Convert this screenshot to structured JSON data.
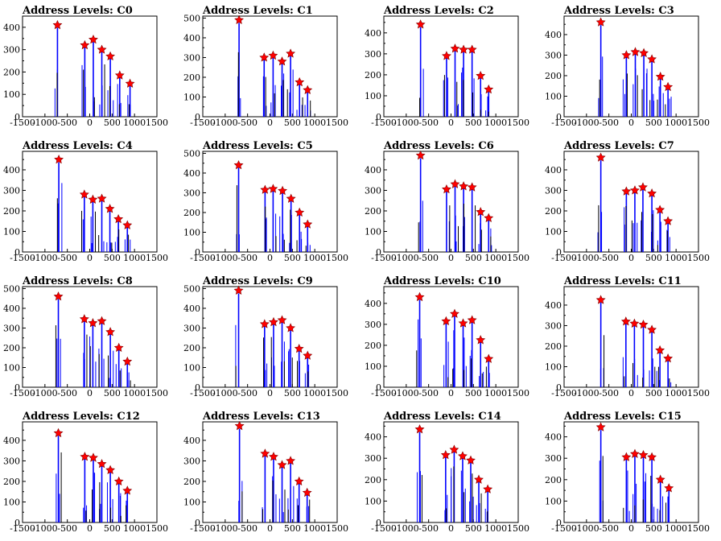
{
  "colors": {
    "hist": "#0000ff",
    "peak_fill": "#ff0000",
    "peak_stroke": "#800000",
    "axis": "#000000"
  },
  "xaxis": {
    "range": [
      -1500,
      1500
    ],
    "ticks": [
      -1500,
      -1000,
      -500,
      0,
      500,
      1000,
      1500
    ]
  },
  "chart_data": [
    {
      "type": "bar",
      "title": "Address Levels: C0",
      "ylim": [
        0,
        450
      ],
      "yticks": [
        0,
        100,
        200,
        300,
        400
      ],
      "peaks": [
        {
          "x": -720,
          "y": 410
        },
        {
          "x": -110,
          "y": 320
        },
        {
          "x": 80,
          "y": 345
        },
        {
          "x": 270,
          "y": 300
        },
        {
          "x": 460,
          "y": 270
        },
        {
          "x": 670,
          "y": 185
        },
        {
          "x": 900,
          "y": 148
        }
      ]
    },
    {
      "type": "bar",
      "title": "Address Levels: C1",
      "ylim": [
        0,
        510
      ],
      "yticks": [
        0,
        100,
        200,
        300,
        400,
        500
      ],
      "peaks": [
        {
          "x": -690,
          "y": 490
        },
        {
          "x": -130,
          "y": 300
        },
        {
          "x": 70,
          "y": 310
        },
        {
          "x": 270,
          "y": 280
        },
        {
          "x": 460,
          "y": 320
        },
        {
          "x": 660,
          "y": 175
        },
        {
          "x": 840,
          "y": 135
        }
      ]
    },
    {
      "type": "bar",
      "title": "Address Levels: C2",
      "ylim": [
        0,
        480
      ],
      "yticks": [
        0,
        100,
        200,
        300,
        400
      ],
      "peaks": [
        {
          "x": -680,
          "y": 440
        },
        {
          "x": -100,
          "y": 290
        },
        {
          "x": 90,
          "y": 325
        },
        {
          "x": 280,
          "y": 320
        },
        {
          "x": 470,
          "y": 320
        },
        {
          "x": 660,
          "y": 195
        },
        {
          "x": 840,
          "y": 130
        }
      ]
    },
    {
      "type": "bar",
      "title": "Address Levels: C3",
      "ylim": [
        0,
        490
      ],
      "yticks": [
        0,
        100,
        200,
        300,
        400
      ],
      "peaks": [
        {
          "x": -680,
          "y": 460
        },
        {
          "x": -110,
          "y": 300
        },
        {
          "x": 90,
          "y": 315
        },
        {
          "x": 280,
          "y": 310
        },
        {
          "x": 460,
          "y": 280
        },
        {
          "x": 650,
          "y": 195
        },
        {
          "x": 820,
          "y": 145
        }
      ]
    },
    {
      "type": "bar",
      "title": "Address Levels: C4",
      "ylim": [
        0,
        490
      ],
      "yticks": [
        0,
        100,
        200,
        300,
        400
      ],
      "peaks": [
        {
          "x": -690,
          "y": 450
        },
        {
          "x": -120,
          "y": 280
        },
        {
          "x": 70,
          "y": 255
        },
        {
          "x": 270,
          "y": 260
        },
        {
          "x": 450,
          "y": 210
        },
        {
          "x": 640,
          "y": 160
        },
        {
          "x": 840,
          "y": 130
        }
      ]
    },
    {
      "type": "bar",
      "title": "Address Levels: C5",
      "ylim": [
        0,
        510
      ],
      "yticks": [
        0,
        100,
        200,
        300,
        400,
        500
      ],
      "peaks": [
        {
          "x": -700,
          "y": 440
        },
        {
          "x": -110,
          "y": 315
        },
        {
          "x": 70,
          "y": 320
        },
        {
          "x": 280,
          "y": 310
        },
        {
          "x": 470,
          "y": 270
        },
        {
          "x": 660,
          "y": 200
        },
        {
          "x": 840,
          "y": 140
        }
      ]
    },
    {
      "type": "bar",
      "title": "Address Levels: C6",
      "ylim": [
        0,
        490
      ],
      "yticks": [
        0,
        100,
        200,
        300,
        400
      ],
      "peaks": [
        {
          "x": -680,
          "y": 470
        },
        {
          "x": -100,
          "y": 305
        },
        {
          "x": 90,
          "y": 330
        },
        {
          "x": 280,
          "y": 320
        },
        {
          "x": 470,
          "y": 315
        },
        {
          "x": 660,
          "y": 195
        },
        {
          "x": 840,
          "y": 165
        }
      ]
    },
    {
      "type": "bar",
      "title": "Address Levels: C7",
      "ylim": [
        0,
        490
      ],
      "yticks": [
        0,
        100,
        200,
        300,
        400
      ],
      "peaks": [
        {
          "x": -680,
          "y": 460
        },
        {
          "x": -110,
          "y": 295
        },
        {
          "x": 80,
          "y": 300
        },
        {
          "x": 260,
          "y": 315
        },
        {
          "x": 460,
          "y": 285
        },
        {
          "x": 640,
          "y": 205
        },
        {
          "x": 820,
          "y": 150
        }
      ]
    },
    {
      "type": "bar",
      "title": "Address Levels: C8",
      "ylim": [
        0,
        510
      ],
      "yticks": [
        0,
        100,
        200,
        300,
        400,
        500
      ],
      "peaks": [
        {
          "x": -700,
          "y": 460
        },
        {
          "x": -120,
          "y": 345
        },
        {
          "x": 70,
          "y": 325
        },
        {
          "x": 270,
          "y": 335
        },
        {
          "x": 460,
          "y": 280
        },
        {
          "x": 650,
          "y": 200
        },
        {
          "x": 840,
          "y": 130
        }
      ]
    },
    {
      "type": "bar",
      "title": "Address Levels: C9",
      "ylim": [
        0,
        510
      ],
      "yticks": [
        0,
        100,
        200,
        300,
        400,
        500
      ],
      "peaks": [
        {
          "x": -700,
          "y": 490
        },
        {
          "x": -120,
          "y": 320
        },
        {
          "x": 80,
          "y": 330
        },
        {
          "x": 270,
          "y": 340
        },
        {
          "x": 460,
          "y": 300
        },
        {
          "x": 650,
          "y": 195
        },
        {
          "x": 840,
          "y": 160
        }
      ]
    },
    {
      "type": "bar",
      "title": "Address Levels: C10",
      "ylim": [
        0,
        480
      ],
      "yticks": [
        0,
        100,
        200,
        300,
        400
      ],
      "peaks": [
        {
          "x": -700,
          "y": 430
        },
        {
          "x": -110,
          "y": 315
        },
        {
          "x": 80,
          "y": 350
        },
        {
          "x": 270,
          "y": 305
        },
        {
          "x": 470,
          "y": 320
        },
        {
          "x": 660,
          "y": 225
        },
        {
          "x": 840,
          "y": 135
        }
      ]
    },
    {
      "type": "bar",
      "title": "Address Levels: C11",
      "ylim": [
        0,
        490
      ],
      "yticks": [
        0,
        100,
        200,
        300,
        400
      ],
      "peaks": [
        {
          "x": -680,
          "y": 425
        },
        {
          "x": -120,
          "y": 320
        },
        {
          "x": 70,
          "y": 310
        },
        {
          "x": 270,
          "y": 305
        },
        {
          "x": 460,
          "y": 280
        },
        {
          "x": 640,
          "y": 180
        },
        {
          "x": 820,
          "y": 140
        }
      ]
    },
    {
      "type": "bar",
      "title": "Address Levels: C12",
      "ylim": [
        0,
        490
      ],
      "yticks": [
        0,
        100,
        200,
        300,
        400
      ],
      "peaks": [
        {
          "x": -700,
          "y": 435
        },
        {
          "x": -110,
          "y": 320
        },
        {
          "x": 80,
          "y": 315
        },
        {
          "x": 270,
          "y": 285
        },
        {
          "x": 460,
          "y": 255
        },
        {
          "x": 650,
          "y": 200
        },
        {
          "x": 840,
          "y": 155
        }
      ]
    },
    {
      "type": "bar",
      "title": "Address Levels: C13",
      "ylim": [
        0,
        490
      ],
      "yticks": [
        0,
        100,
        200,
        300,
        400
      ],
      "peaks": [
        {
          "x": -680,
          "y": 470
        },
        {
          "x": -110,
          "y": 335
        },
        {
          "x": 80,
          "y": 320
        },
        {
          "x": 270,
          "y": 280
        },
        {
          "x": 460,
          "y": 300
        },
        {
          "x": 650,
          "y": 200
        },
        {
          "x": 830,
          "y": 145
        }
      ]
    },
    {
      "type": "bar",
      "title": "Address Levels: C14",
      "ylim": [
        0,
        470
      ],
      "yticks": [
        0,
        100,
        200,
        300,
        400
      ],
      "peaks": [
        {
          "x": -700,
          "y": 435
        },
        {
          "x": -120,
          "y": 315
        },
        {
          "x": 70,
          "y": 340
        },
        {
          "x": 260,
          "y": 310
        },
        {
          "x": 440,
          "y": 290
        },
        {
          "x": 620,
          "y": 200
        },
        {
          "x": 820,
          "y": 155
        }
      ]
    },
    {
      "type": "bar",
      "title": "Address Levels: C15",
      "ylim": [
        0,
        470
      ],
      "yticks": [
        0,
        100,
        200,
        300,
        400
      ],
      "peaks": [
        {
          "x": -680,
          "y": 445
        },
        {
          "x": -110,
          "y": 305
        },
        {
          "x": 80,
          "y": 320
        },
        {
          "x": 270,
          "y": 315
        },
        {
          "x": 460,
          "y": 305
        },
        {
          "x": 650,
          "y": 200
        },
        {
          "x": 840,
          "y": 160
        }
      ]
    }
  ]
}
